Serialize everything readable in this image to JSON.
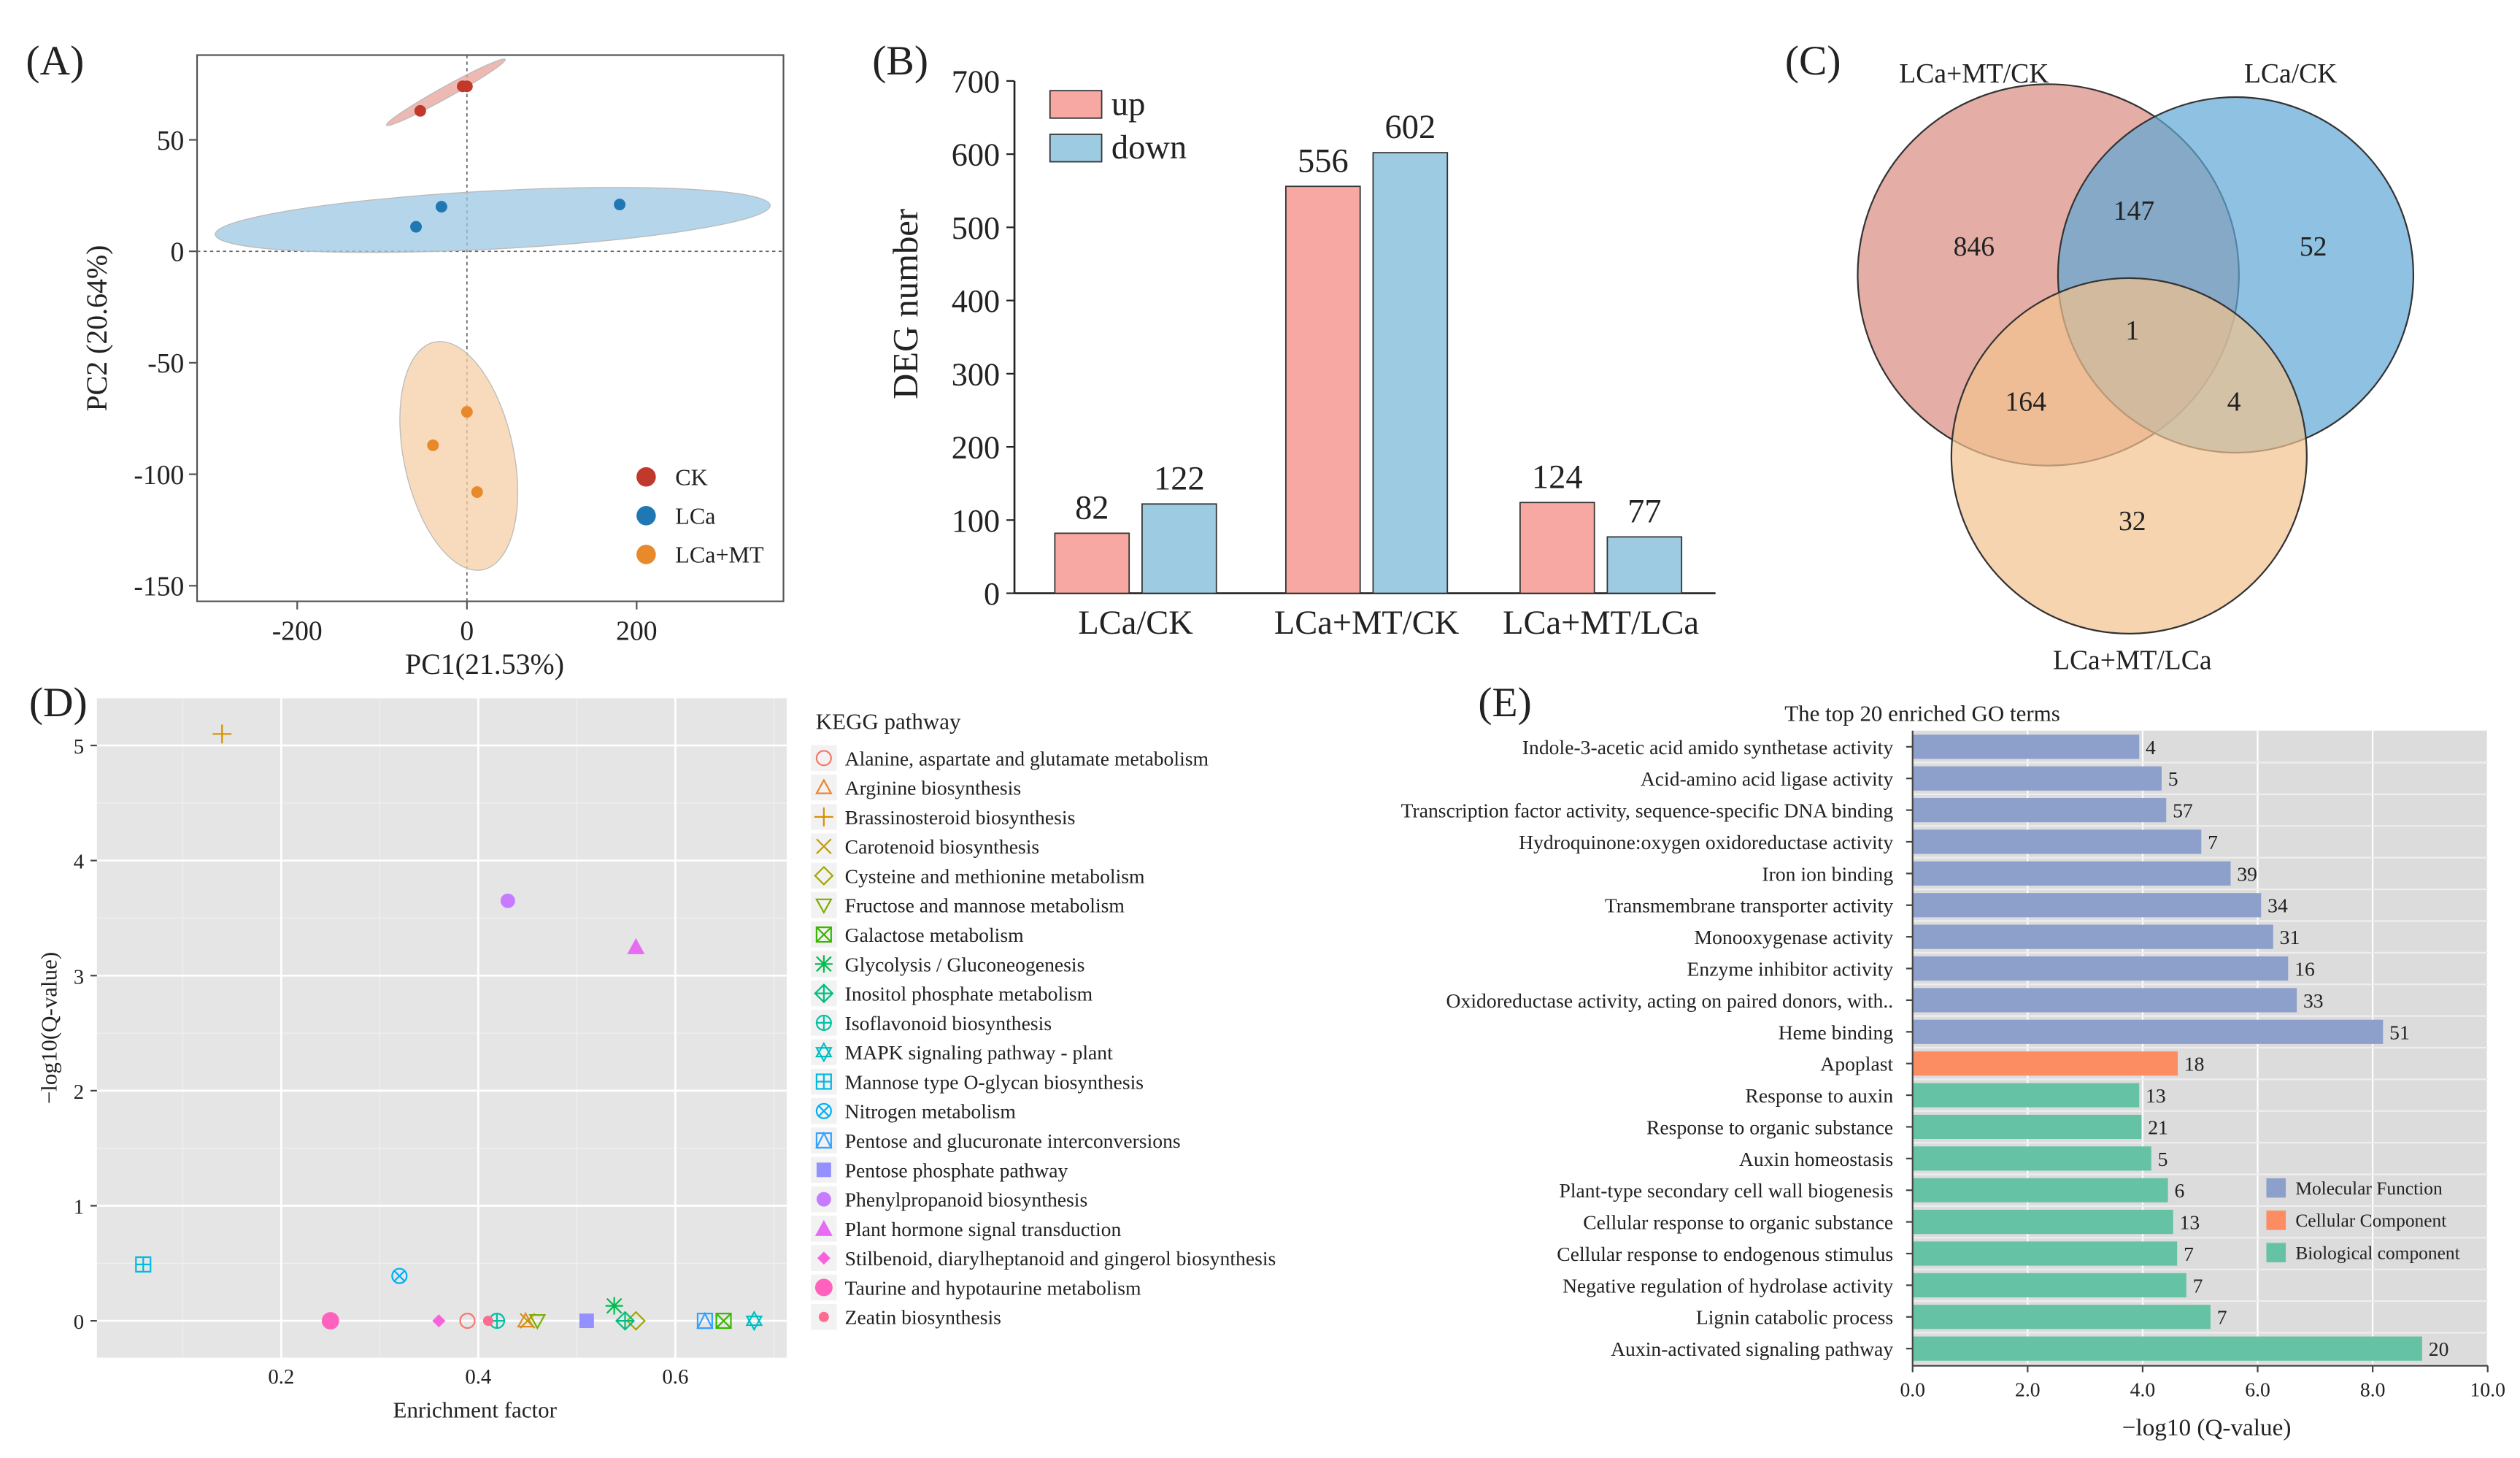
{
  "panel_labels": [
    "(A)",
    "(B)",
    "(C)",
    "(D)",
    "(E)"
  ],
  "chart_data": [
    {
      "id": "A",
      "type": "scatter",
      "title": "",
      "xlabel": "PC1(21.53%)",
      "ylabel": "PC2 (20.64%)",
      "xlim": [
        -318,
        373
      ],
      "ylim": [
        -157,
        88
      ],
      "xticks": [
        -200,
        0,
        200
      ],
      "yticks": [
        50,
        0,
        -50,
        -100,
        -150
      ],
      "legend_position": "bottom-right",
      "series": [
        {
          "name": "CK",
          "color": "#C0392B",
          "ellipse_color": "#E8A09A",
          "points": [
            [
              -55,
              63
            ],
            [
              -5,
              74
            ],
            [
              0,
              74
            ]
          ]
        },
        {
          "name": "LCa",
          "color": "#1F77B4",
          "ellipse_color": "#9CC7E3",
          "points": [
            [
              -60,
              11
            ],
            [
              -30,
              20
            ],
            [
              180,
              21
            ]
          ]
        },
        {
          "name": "LCa+MT",
          "color": "#E8892B",
          "ellipse_color": "#F5CFA6",
          "points": [
            [
              0,
              -72
            ],
            [
              -40,
              -87
            ],
            [
              12,
              -108
            ]
          ]
        }
      ]
    },
    {
      "id": "B",
      "type": "bar",
      "ylabel": "DEG number",
      "ylim": [
        0,
        700
      ],
      "yticks": [
        0,
        100,
        200,
        300,
        400,
        500,
        600,
        700
      ],
      "categories": [
        "LCa/CK",
        "LCa+MT/CK",
        "LCa+MT/LCa"
      ],
      "legend_position": "top-left",
      "series": [
        {
          "name": "up",
          "color": "#F8A8A2",
          "values": [
            82,
            556,
            124
          ]
        },
        {
          "name": "down",
          "color": "#9DCBE2",
          "values": [
            122,
            602,
            77
          ]
        }
      ]
    },
    {
      "id": "C",
      "type": "venn",
      "sets": [
        {
          "name": "LCa+MT/CK",
          "color": "#D98B80"
        },
        {
          "name": "LCa/CK",
          "color": "#5EA6D6"
        },
        {
          "name": "LCa+MT/LCa",
          "color": "#F2C28E"
        }
      ],
      "regions": {
        "only_LCaMT_CK": 846,
        "only_LCa_CK": 52,
        "only_LCaMT_LCa": 32,
        "LCaMT_CK_and_LCa_CK": 147,
        "LCaMT_CK_and_LCaMT_LCa": 164,
        "LCa_CK_and_LCaMT_LCa": 4,
        "all_three": 1
      }
    },
    {
      "id": "D",
      "type": "scatter",
      "xlabel": "Enrichment factor",
      "ylabel": "−log10(Q-value)",
      "xlim": [
        0.013,
        0.713
      ],
      "ylim": [
        -0.32,
        5.41
      ],
      "xticks": [
        0.2,
        0.4,
        0.6
      ],
      "yticks": [
        0,
        1,
        2,
        3,
        4,
        5
      ],
      "grid": true,
      "legend_title": "KEGG pathway",
      "legend_position": "right",
      "series": [
        {
          "name": "Alanine, aspartate and glutamate metabolism",
          "shape": "circle-open",
          "color": "#F8766D",
          "x": 0.389,
          "y": 0
        },
        {
          "name": "Arginine biosynthesis",
          "shape": "triangle-open",
          "color": "#EA8331",
          "x": 0.448,
          "y": 0
        },
        {
          "name": "Brassinosteroid biosynthesis",
          "shape": "plus",
          "color": "#D89000",
          "x": 0.14,
          "y": 5.1
        },
        {
          "name": "Carotenoid biosynthesis",
          "shape": "cross",
          "color": "#C09B00",
          "x": 0.45,
          "y": 0
        },
        {
          "name": "Cysteine and methionine metabolism",
          "shape": "diamond-open",
          "color": "#A3A500",
          "x": 0.56,
          "y": 0
        },
        {
          "name": "Fructose and mannose metabolism",
          "shape": "triangle-down-open",
          "color": "#7CAE00",
          "x": 0.46,
          "y": 0
        },
        {
          "name": "Galactose metabolism",
          "shape": "square-cross",
          "color": "#39B600",
          "x": 0.649,
          "y": 0
        },
        {
          "name": "Glycolysis / Gluconeogenesis",
          "shape": "asterisk",
          "color": "#00BB4E",
          "x": 0.538,
          "y": 0.13
        },
        {
          "name": "Inositol phosphate metabolism",
          "shape": "diamond-plus",
          "color": "#00BF7D",
          "x": 0.549,
          "y": 0
        },
        {
          "name": "Isoflavonoid biosynthesis",
          "shape": "circle-plus",
          "color": "#00C1A3",
          "x": 0.419,
          "y": 0
        },
        {
          "name": "MAPK signaling pathway - plant",
          "shape": "star-david",
          "color": "#00BFC4",
          "x": 0.68,
          "y": 0
        },
        {
          "name": "Mannose type O-glycan biosynthesis",
          "shape": "square-plus",
          "color": "#00BAE0",
          "x": 0.06,
          "y": 0.49
        },
        {
          "name": "Nitrogen metabolism",
          "shape": "circle-cross",
          "color": "#00B0F6",
          "x": 0.32,
          "y": 0.39
        },
        {
          "name": "Pentose and glucuronate interconversions",
          "shape": "square-triangle",
          "color": "#35A2FF",
          "x": 0.63,
          "y": 0
        },
        {
          "name": "Pentose phosphate pathway",
          "shape": "square",
          "color": "#9590FF",
          "x": 0.51,
          "y": 0
        },
        {
          "name": "Phenylpropanoid biosynthesis",
          "shape": "circle",
          "color": "#C77CFF",
          "x": 0.43,
          "y": 3.65
        },
        {
          "name": "Plant hormone signal transduction",
          "shape": "triangle",
          "color": "#E76BF3",
          "x": 0.56,
          "y": 3.25
        },
        {
          "name": "Stilbenoid, diarylheptanoid and gingerol biosynthesis",
          "shape": "diamond",
          "color": "#FA62DB",
          "x": 0.36,
          "y": 0
        },
        {
          "name": "Taurine and hypotaurine metabolism",
          "shape": "circle-big",
          "color": "#FF62BC",
          "x": 0.25,
          "y": 0
        },
        {
          "name": "Zeatin biosynthesis",
          "shape": "circle-small",
          "color": "#FF6C91",
          "x": 0.41,
          "y": 0
        }
      ]
    },
    {
      "id": "E",
      "type": "bar",
      "orientation": "horizontal",
      "title": "The top 20 enriched GO terms",
      "xlabel": "−log10 (Q-value)",
      "xlim": [
        0,
        10
      ],
      "xticks": [
        "0.0",
        "2.0",
        "4.0",
        "6.0",
        "8.0",
        "10.0"
      ],
      "legend_position": "bottom-right",
      "legend": [
        {
          "name": "Molecular Function",
          "color": "#8DA0CB"
        },
        {
          "name": "Cellular Component",
          "color": "#FC8D62"
        },
        {
          "name": "Biological component",
          "color": "#66C2A5"
        }
      ],
      "bars": [
        {
          "term": "Indole-3-acetic acid amido synthetase activity",
          "category": 0,
          "value": 3.94,
          "count": "4"
        },
        {
          "term": "Acid-amino acid ligase activity",
          "category": 0,
          "value": 4.33,
          "count": "5"
        },
        {
          "term": "Transcription factor activity, sequence-specific DNA binding",
          "category": 0,
          "value": 4.41,
          "count": "57"
        },
        {
          "term": "Hydroquinone:oxygen oxidoreductase activity",
          "category": 0,
          "value": 5.02,
          "count": "7"
        },
        {
          "term": "Iron ion binding",
          "category": 0,
          "value": 5.53,
          "count": "39"
        },
        {
          "term": "Transmembrane transporter activity",
          "category": 0,
          "value": 6.06,
          "count": "34"
        },
        {
          "term": "Monooxygenase activity",
          "category": 0,
          "value": 6.27,
          "count": "31"
        },
        {
          "term": "Enzyme inhibitor activity",
          "category": 0,
          "value": 6.53,
          "count": "16"
        },
        {
          "term": "Oxidoreductase activity, acting on paired donors, with..",
          "category": 0,
          "value": 6.68,
          "count": "33"
        },
        {
          "term": "Heme binding",
          "category": 0,
          "value": 8.18,
          "count": "51"
        },
        {
          "term": "Apoplast",
          "category": 1,
          "value": 4.61,
          "count": "18"
        },
        {
          "term": "Response to auxin",
          "category": 2,
          "value": 3.94,
          "count": "13"
        },
        {
          "term": "Response to organic substance",
          "category": 2,
          "value": 3.98,
          "count": "21"
        },
        {
          "term": "Auxin homeostasis",
          "category": 2,
          "value": 4.15,
          "count": "5"
        },
        {
          "term": "Plant-type secondary cell wall biogenesis",
          "category": 2,
          "value": 4.44,
          "count": "6"
        },
        {
          "term": "Cellular response to organic substance",
          "category": 2,
          "value": 4.53,
          "count": "13"
        },
        {
          "term": "Cellular response to endogenous stimulus",
          "category": 2,
          "value": 4.6,
          "count": "7"
        },
        {
          "term": "Negative regulation of hydrolase activity",
          "category": 2,
          "value": 4.76,
          "count": "7"
        },
        {
          "term": "Lignin catabolic process",
          "category": 2,
          "value": 5.18,
          "count": "7"
        },
        {
          "term": "Auxin-activated signaling pathway",
          "category": 2,
          "value": 8.86,
          "count": "20"
        }
      ]
    }
  ]
}
